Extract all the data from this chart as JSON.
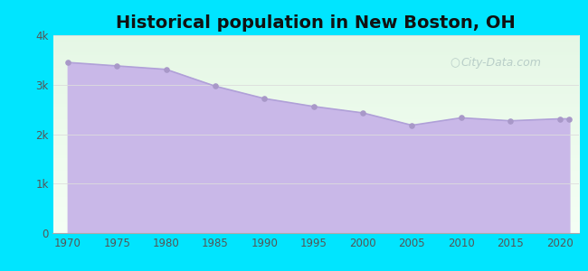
{
  "title": "Historical population in New Boston, OH",
  "title_fontsize": 14,
  "title_fontweight": "bold",
  "background_outer": "#00e5ff",
  "fill_color": "#c9b8e8",
  "line_color": "#b0a0d8",
  "marker_color": "#a898c8",
  "years": [
    1970,
    1975,
    1980,
    1985,
    1990,
    1995,
    2000,
    2005,
    2010,
    2015,
    2020,
    2021
  ],
  "population": [
    3450,
    3380,
    3310,
    2970,
    2720,
    2560,
    2430,
    2180,
    2330,
    2270,
    2310,
    2310
  ],
  "ylim": [
    0,
    4000
  ],
  "yticks": [
    0,
    1000,
    2000,
    3000,
    4000
  ],
  "ytick_labels": [
    "0",
    "1k",
    "2k",
    "3k",
    "4k"
  ],
  "xticks": [
    1970,
    1975,
    1980,
    1985,
    1990,
    1995,
    2000,
    2005,
    2010,
    2015,
    2020
  ],
  "xlim_left": 1968.5,
  "xlim_right": 2022.0,
  "watermark_text": "City-Data.com",
  "watermark_color": "#a0b8b8",
  "watermark_alpha": 0.65,
  "tick_color": "#555555",
  "grid_color": "#dddddd",
  "plot_bg_top": "#eaf5ea",
  "plot_bg_bottom": "#f8fff8"
}
